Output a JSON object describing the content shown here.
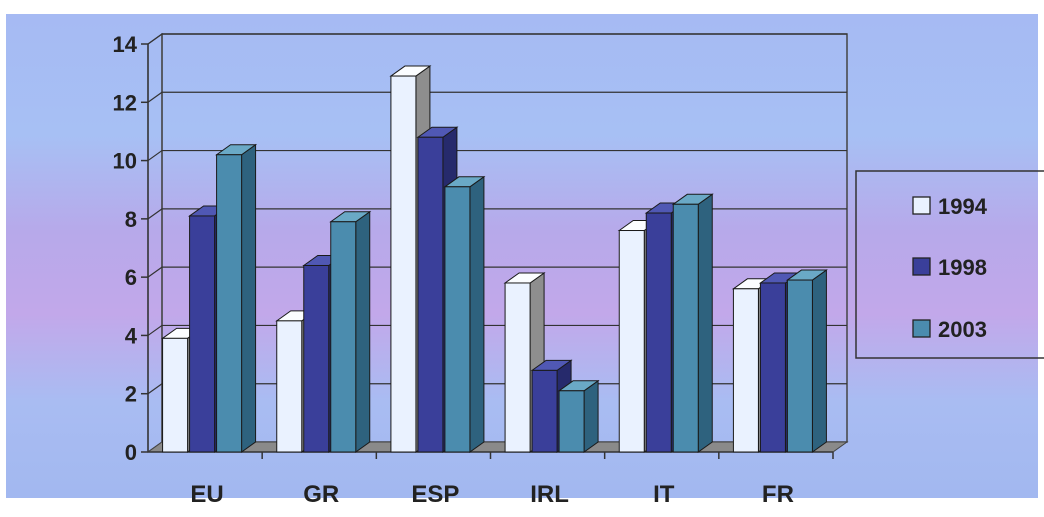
{
  "chart_data": {
    "type": "bar",
    "title": "",
    "xlabel": "",
    "ylabel": "",
    "ylim": [
      0,
      14
    ],
    "yticks": [
      "0",
      "2",
      "4",
      "6",
      "8",
      "10",
      "12",
      "14"
    ],
    "categories": [
      "EU",
      "GR",
      "ESP",
      "IRL",
      "IT",
      "FR"
    ],
    "series": [
      {
        "name": "1994",
        "values": [
          3.9,
          4.5,
          12.9,
          5.8,
          7.6,
          5.6
        ]
      },
      {
        "name": "1998",
        "values": [
          8.1,
          6.4,
          10.8,
          2.8,
          8.2,
          5.8
        ]
      },
      {
        "name": "2003",
        "values": [
          10.2,
          7.9,
          9.1,
          2.1,
          8.5,
          5.9
        ]
      }
    ],
    "legend_position": "right",
    "grid": true,
    "colors": {
      "series_front": [
        "#eaf2ff",
        "#3a3f9a",
        "#4b8cae"
      ],
      "series_top": [
        "#fbfdff",
        "#5058b4",
        "#6aa9c6"
      ],
      "series_side": [
        "#8e8e8e",
        "#262a6c",
        "#2e627e"
      ]
    }
  }
}
